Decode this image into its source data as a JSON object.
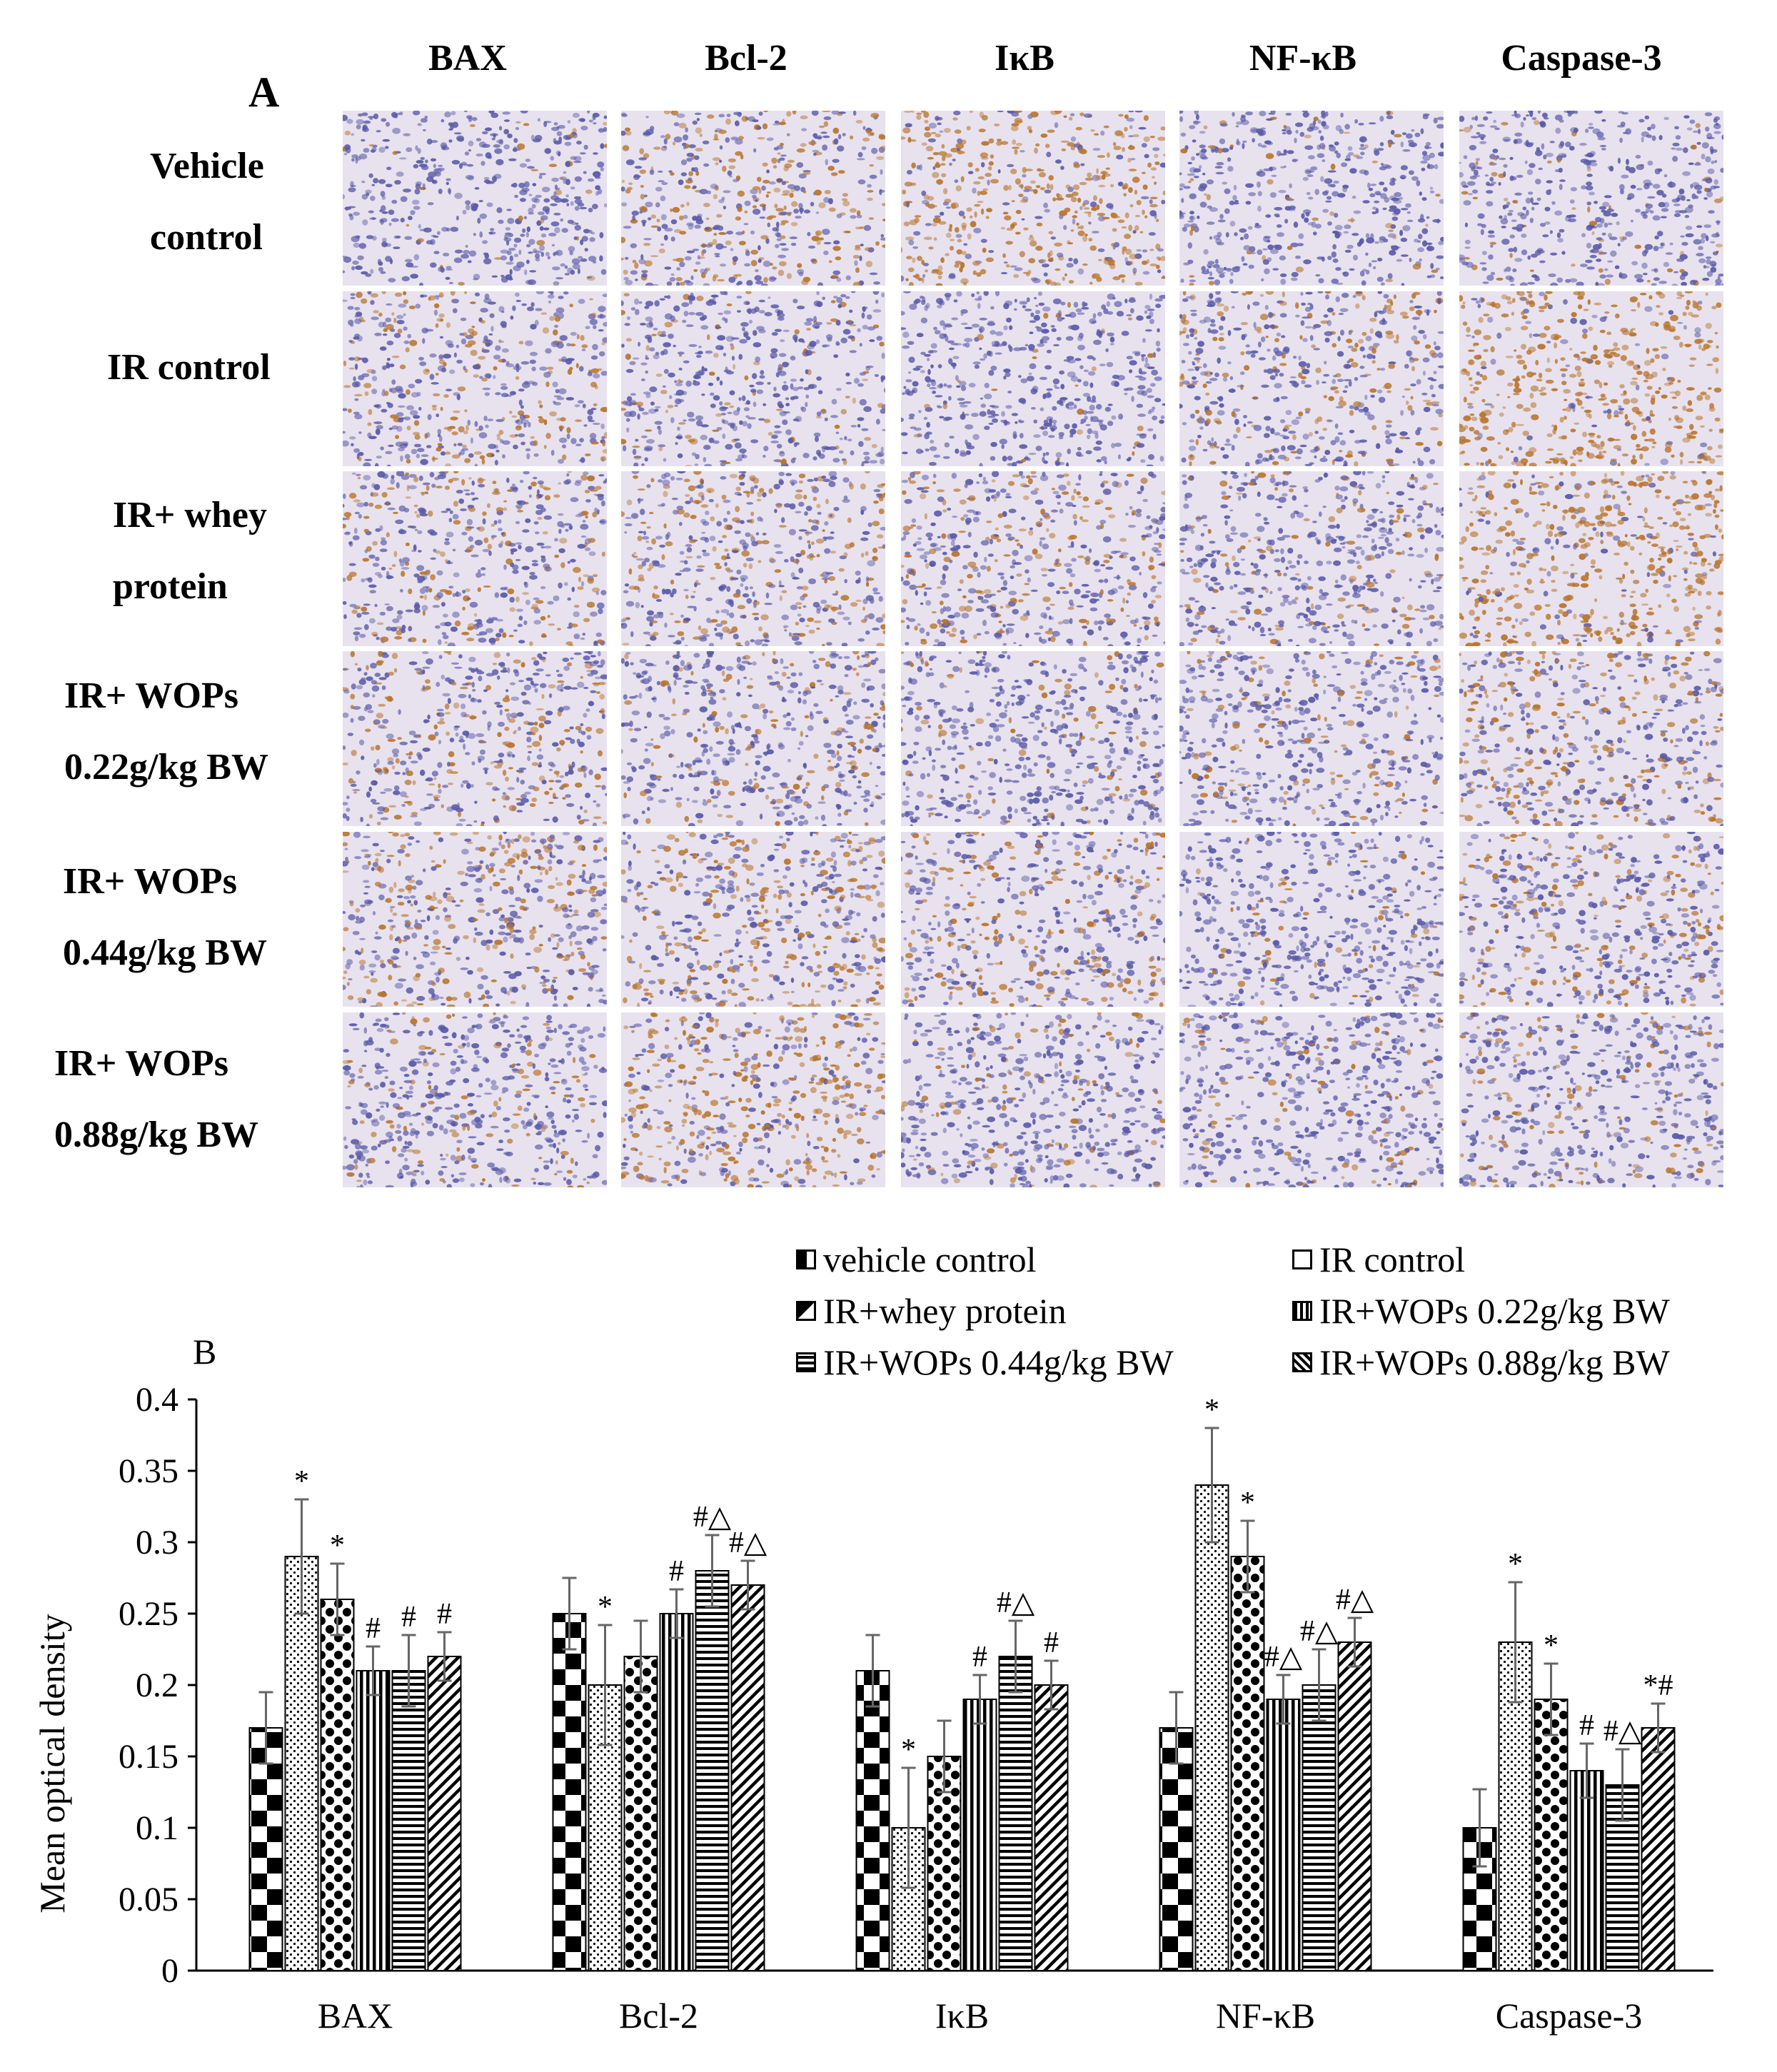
{
  "panel_a": {
    "letter": "A",
    "columns": [
      "BAX",
      "Bcl-2",
      "IκB",
      "NF-κB",
      "Caspase-3"
    ],
    "rows": [
      {
        "line1": "Vehicle",
        "line2": "control"
      },
      {
        "line1": "IR control",
        "line2": ""
      },
      {
        "line1": "IR+  whey",
        "line2": "protein"
      },
      {
        "line1": "IR+ WOPs",
        "line2": "0.22g/kg BW"
      },
      {
        "line1": "IR+ WOPs",
        "line2": "0.44g/kg BW"
      },
      {
        "line1": "IR+ WOPs",
        "line2": "0.88g/kg BW"
      }
    ],
    "stain_colors": {
      "hematoxylin": "#5a5aa8",
      "dab": "#b8752e",
      "background": "#e8e2ee"
    }
  },
  "panel_b": {
    "letter": "B"
  },
  "chart_data": {
    "type": "bar",
    "ylabel": "Mean optical density",
    "xlabel": "",
    "ylim": [
      0,
      0.4
    ],
    "yticks": [
      "0",
      "0.05",
      "0.1",
      "0.15",
      "0.2",
      "0.25",
      "0.3",
      "0.35",
      "0.4"
    ],
    "categories": [
      "BAX",
      "Bcl-2",
      "IκB",
      "NF-κB",
      "Caspase-3"
    ],
    "legend_position": "top-right",
    "series": [
      {
        "name": "vehicle control",
        "pattern": "checker",
        "values": [
          0.17,
          0.25,
          0.21,
          0.17,
          0.1
        ],
        "errors": [
          0.025,
          0.025,
          0.025,
          0.025,
          0.027
        ],
        "marks": [
          "",
          "",
          "",
          "",
          ""
        ]
      },
      {
        "name": "IR control",
        "pattern": "dots",
        "values": [
          0.29,
          0.2,
          0.1,
          0.34,
          0.23
        ],
        "errors": [
          0.04,
          0.042,
          0.042,
          0.04,
          0.042
        ],
        "marks": [
          "*",
          "*",
          "*",
          "*",
          "*"
        ]
      },
      {
        "name": "IR+whey protein",
        "pattern": "bigdots",
        "values": [
          0.26,
          0.22,
          0.15,
          0.29,
          0.19
        ],
        "errors": [
          0.025,
          0.025,
          0.025,
          0.025,
          0.025
        ],
        "marks": [
          "*",
          "",
          "",
          "*",
          "*"
        ]
      },
      {
        "name": "IR+WOPs 0.22g/kg BW",
        "pattern": "vlines",
        "values": [
          0.21,
          0.25,
          0.19,
          0.19,
          0.14
        ],
        "errors": [
          0.017,
          0.017,
          0.017,
          0.017,
          0.019
        ],
        "marks": [
          "#",
          "#",
          "#",
          "#△",
          "#"
        ]
      },
      {
        "name": "IR+WOPs 0.44g/kg BW",
        "pattern": "hlines",
        "values": [
          0.21,
          0.28,
          0.22,
          0.2,
          0.13
        ],
        "errors": [
          0.025,
          0.025,
          0.025,
          0.025,
          0.025
        ],
        "marks": [
          "#",
          "#△",
          "#△",
          "#△",
          "#△"
        ]
      },
      {
        "name": "IR+WOPs 0.88g/kg BW",
        "pattern": "diag",
        "values": [
          0.22,
          0.27,
          0.2,
          0.23,
          0.17
        ],
        "errors": [
          0.017,
          0.017,
          0.017,
          0.017,
          0.017
        ],
        "marks": [
          "#",
          "#△",
          "#",
          "#△",
          "*#"
        ]
      }
    ]
  }
}
